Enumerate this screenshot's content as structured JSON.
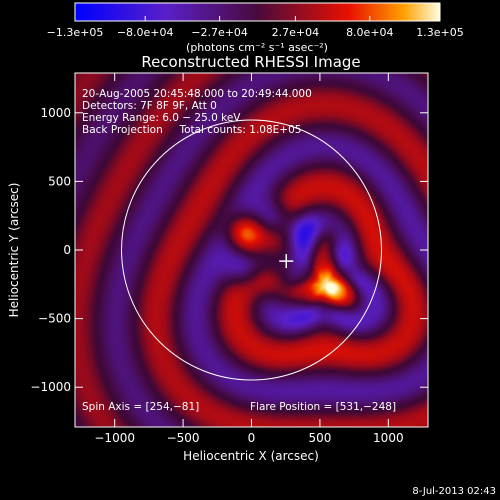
{
  "chart_data": {
    "type": "heatmap",
    "title": "Reconstructed RHESSI Image",
    "xlabel": "Heliocentric X (arcsec)",
    "ylabel": "Heliocentric Y (arcsec)",
    "xlim": [
      -1290,
      1290
    ],
    "ylim": [
      -1290,
      1290
    ],
    "x_ticks": [
      -1000,
      -500,
      0,
      500,
      1000
    ],
    "y_ticks": [
      -1000,
      -500,
      0,
      500,
      1000
    ],
    "x_tick_labels": [
      "−1000",
      "−500",
      "0",
      "500",
      "1000"
    ],
    "y_tick_labels": [
      "−1000",
      "−500",
      "0",
      "500",
      "1000"
    ],
    "colorbar": {
      "range": [
        -130000,
        130000
      ],
      "tick_values": [
        -130000,
        -80000,
        -27000,
        27000,
        80000,
        130000
      ],
      "tick_labels": [
        "−1.3e+05",
        "−8.0e+04",
        "−2.7e+04",
        "2.7e+04",
        "8.0e+04",
        "1.3e+05"
      ],
      "unit_label": "(photons cm⁻² s⁻¹ asec⁻²)"
    },
    "info_lines": [
      "20‑Aug‑2005 20:45:48.000 to 20:49:44.000",
      "Detectors: 7F 8F 9F, Att 0",
      "Energy Range: 6.0 − 25.0 keV",
      "Back Projection     Total counts: 1.08E+05"
    ],
    "spin_axis_label": "Spin Axis = [254,−81]",
    "flare_position_label": "Flare Position = [531,−248]",
    "solar_limb_radius": 950,
    "spin_axis": [
      254,
      -81
    ],
    "flare_position": [
      531,
      -248
    ],
    "peaks": [
      {
        "x": 560,
        "y": -260,
        "value": 130000
      },
      {
        "x": -50,
        "y": 130,
        "value": 118000
      },
      {
        "x": 540,
        "y": 60,
        "value": 90000
      },
      {
        "x": 270,
        "y": -300,
        "value": 86000
      },
      {
        "x": 130,
        "y": -240,
        "value": 55000
      }
    ],
    "troughs": [
      {
        "x": 160,
        "y": 230,
        "value": -80000
      },
      {
        "x": -60,
        "y": -140,
        "value": -80000
      },
      {
        "x": 400,
        "y": 130,
        "value": -65000
      },
      {
        "x": 330,
        "y": -360,
        "value": -75000
      },
      {
        "x": 110,
        "y": -80,
        "value": -60000
      },
      {
        "x": 580,
        "y": -20,
        "value": -60000
      }
    ]
  },
  "footer": {
    "timestamp": "8-Jul-2013 02:43"
  }
}
